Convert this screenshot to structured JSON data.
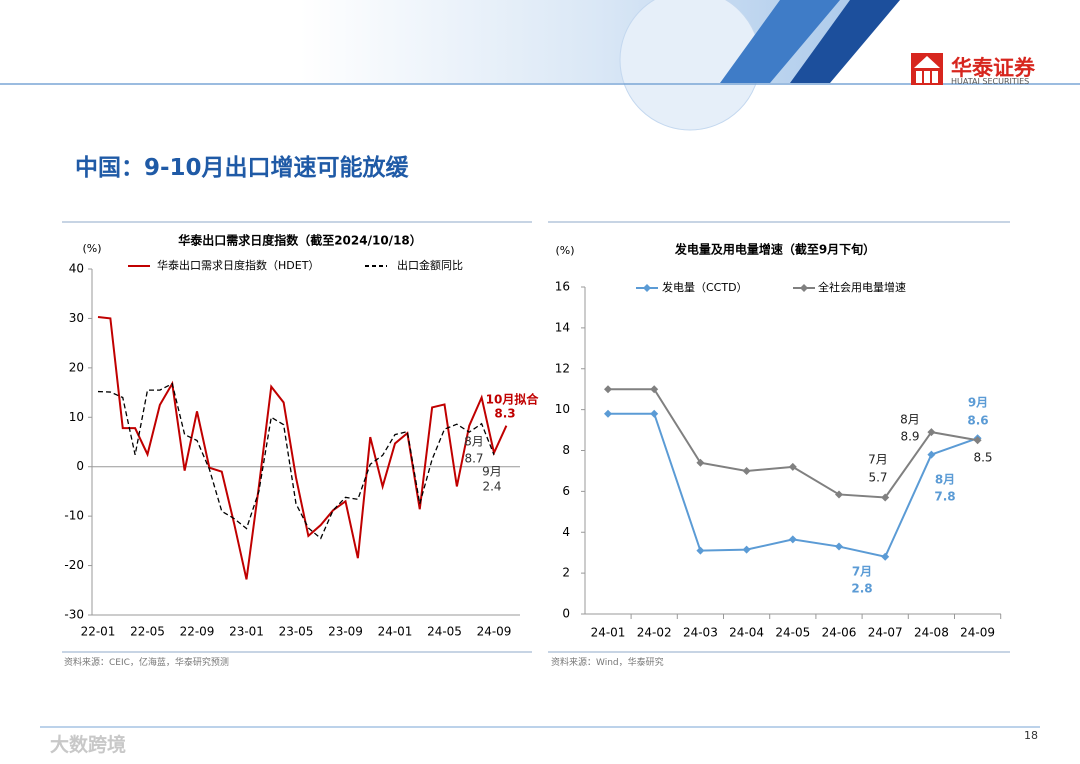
{
  "header": {
    "logo_cn": "华泰证券",
    "logo_en": "HUATAI SECURITIES"
  },
  "title": "中国：9-10月出口增速可能放缓",
  "chart_data": [
    {
      "type": "line",
      "title": "华泰出口需求日度指数（截至2024/10/18）",
      "y_unit": "(%)",
      "categories": [
        "22-01",
        null,
        null,
        null,
        "22-05",
        null,
        null,
        null,
        "22-09",
        null,
        null,
        null,
        "23-01",
        null,
        null,
        null,
        "23-05",
        null,
        null,
        null,
        "23-09",
        null,
        null,
        null,
        "24-01",
        null,
        null,
        null,
        "24-05",
        null,
        null,
        null,
        "24-09",
        null
      ],
      "series": [
        {
          "name": "华泰出口需求日度指数（HDET）",
          "color": "#c00000",
          "values": [
            30.3,
            30.0,
            7.8,
            7.8,
            2.5,
            12.5,
            16.8,
            -0.8,
            11.2,
            -0.2,
            -1.0,
            -11.5,
            -22.8,
            -4.0,
            16.2,
            13.0,
            -2.2,
            -14.0,
            -11.8,
            -8.8,
            -7.0,
            -18.5,
            6.0,
            -4.0,
            4.7,
            6.8,
            -8.6,
            12.0,
            12.6,
            -4.0,
            8.3,
            14.0,
            2.8,
            8.3
          ]
        },
        {
          "name": "出口金额同比",
          "color": "#000000",
          "dash": true,
          "values": [
            15.2,
            15.1,
            14.0,
            2.4,
            15.5,
            15.5,
            16.8,
            6.5,
            5.3,
            -0.5,
            -9.0,
            -10.5,
            -12.5,
            -5.0,
            10.0,
            8.5,
            -7.5,
            -12.4,
            -14.5,
            -8.8,
            -6.2,
            -6.6,
            0.5,
            2.3,
            6.5,
            7.1,
            -7.5,
            1.5,
            7.6,
            8.6,
            7.0,
            8.7,
            2.4,
            null
          ]
        }
      ],
      "ylim": [
        -30,
        40
      ],
      "yticks": [
        -30,
        -20,
        -10,
        0,
        10,
        20,
        30,
        40
      ],
      "annotations": [
        "10月拟合",
        "8月",
        "9月"
      ],
      "source": "资料来源：CEIC，亿海蓝，华泰研究预测"
    },
    {
      "type": "line",
      "title": "发电量及用电量增速（截至9月下旬）",
      "y_unit": "(%)",
      "categories": [
        "24-01",
        "24-02",
        "24-03",
        "24-04",
        "24-05",
        "24-06",
        "24-07",
        "24-08",
        "24-09"
      ],
      "series": [
        {
          "name": "发电量（CCTD）",
          "color": "#5b9bd5",
          "marker": "diamond",
          "values": [
            9.8,
            9.8,
            3.1,
            3.15,
            3.65,
            3.3,
            2.8,
            7.8,
            8.6
          ]
        },
        {
          "name": "全社会用电量增速",
          "color": "#808080",
          "marker": "diamond",
          "values": [
            11.0,
            11.0,
            7.4,
            7.0,
            7.2,
            5.85,
            5.7,
            8.9,
            8.5
          ]
        }
      ],
      "ylim": [
        0,
        16
      ],
      "yticks": [
        0,
        2,
        4,
        6,
        8,
        10,
        12,
        14,
        16
      ],
      "annotations": [
        "7月",
        "8月",
        "9月",
        "7月",
        "8月"
      ],
      "source": "资料来源：Wind，华泰研究"
    }
  ],
  "page_number": "18",
  "watermark": "大数跨境"
}
